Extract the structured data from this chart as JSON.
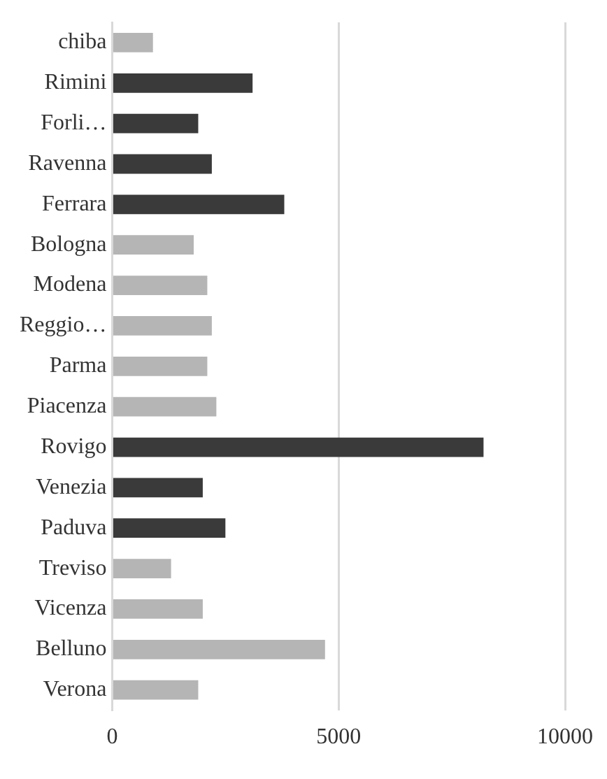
{
  "chart_data": {
    "type": "bar",
    "orientation": "horizontal",
    "categories": [
      "chiba",
      "Rimini",
      "Forli…",
      "Ravenna",
      "Ferrara",
      "Bologna",
      "Modena",
      "Reggio…",
      "Parma",
      "Piacenza",
      "Rovigo",
      "Venezia",
      "Paduva",
      "Treviso",
      "Vicenza",
      "Belluno",
      "Verona"
    ],
    "values": [
      900,
      3100,
      1900,
      2200,
      3800,
      1800,
      2100,
      2200,
      2100,
      2300,
      8200,
      2000,
      2500,
      1300,
      2000,
      4700,
      1900
    ],
    "colors": [
      "#b5b5b5",
      "#3a3a3a",
      "#3a3a3a",
      "#3a3a3a",
      "#3a3a3a",
      "#b5b5b5",
      "#b5b5b5",
      "#b5b5b5",
      "#b5b5b5",
      "#b5b5b5",
      "#3a3a3a",
      "#3a3a3a",
      "#3a3a3a",
      "#b5b5b5",
      "#b5b5b5",
      "#b5b5b5",
      "#b5b5b5"
    ],
    "xlim": [
      0,
      10000
    ],
    "xticks": [
      0,
      5000,
      10000
    ],
    "grid": "x",
    "legend": false
  }
}
